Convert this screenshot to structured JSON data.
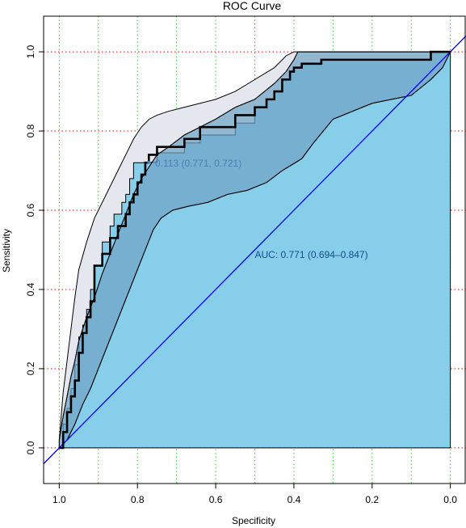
{
  "chart_data": {
    "type": "line",
    "title": "ROC Curve",
    "xlabel": "Specificity",
    "ylabel": "Sensitivity",
    "xlim": [
      1.04,
      -0.04
    ],
    "ylim": [
      -0.09,
      1.09
    ],
    "x_reversed": true,
    "grid": true,
    "x_ticks": [
      "1.0",
      "0.8",
      "0.6",
      "0.4",
      "0.2",
      "0.0"
    ],
    "y_ticks": [
      "0.0",
      "0.2",
      "0.4",
      "0.6",
      "0.8",
      "1.0"
    ],
    "x_tick_values": [
      1.0,
      0.8,
      0.6,
      0.4,
      0.2,
      0.0
    ],
    "y_tick_values": [
      0.0,
      0.2,
      0.4,
      0.6,
      0.8,
      1.0
    ],
    "x_grid": [
      1.0,
      0.9,
      0.8,
      0.7,
      0.6,
      0.5,
      0.4,
      0.3,
      0.2,
      0.1,
      0.0
    ],
    "y_grid": [
      0.0,
      0.2,
      0.4,
      0.6,
      0.8,
      1.0
    ],
    "colors": {
      "grid_x": "#32cd32",
      "grid_y": "#ff0000",
      "auc_fill": "#87ceeb",
      "ci_band": "#6fa3c4",
      "outer_band": "#e5e7ee",
      "curve": "#000000",
      "diagonal": "#0000ff",
      "best_point": "#4682b4",
      "auc_text": "#104e8b"
    },
    "roc_curve": {
      "specificity": [
        1.0,
        0.99,
        0.99,
        0.98,
        0.98,
        0.97,
        0.97,
        0.96,
        0.96,
        0.95,
        0.95,
        0.94,
        0.94,
        0.93,
        0.93,
        0.92,
        0.92,
        0.91,
        0.91,
        0.89,
        0.89,
        0.87,
        0.87,
        0.86,
        0.86,
        0.84,
        0.84,
        0.83,
        0.83,
        0.82,
        0.82,
        0.81,
        0.81,
        0.8,
        0.8,
        0.79,
        0.79,
        0.78,
        0.78,
        0.771,
        0.771,
        0.75,
        0.75,
        0.68,
        0.68,
        0.64,
        0.64,
        0.55,
        0.55,
        0.5,
        0.5,
        0.47,
        0.47,
        0.45,
        0.45,
        0.43,
        0.43,
        0.41,
        0.41,
        0.4,
        0.4,
        0.38,
        0.38,
        0.33,
        0.33,
        0.05,
        0.05,
        0.0,
        0.0
      ],
      "sensitivity": [
        0.0,
        0.0,
        0.06,
        0.06,
        0.1,
        0.1,
        0.15,
        0.15,
        0.21,
        0.21,
        0.28,
        0.28,
        0.31,
        0.31,
        0.35,
        0.35,
        0.4,
        0.4,
        0.46,
        0.46,
        0.52,
        0.52,
        0.56,
        0.56,
        0.59,
        0.59,
        0.62,
        0.62,
        0.64,
        0.64,
        0.68,
        0.68,
        0.7,
        0.7,
        0.72,
        0.72,
        0.74,
        0.74,
        0.76,
        0.76,
        0.81,
        0.81,
        0.84,
        0.84,
        0.86,
        0.86,
        0.88,
        0.88,
        0.92,
        0.92,
        0.94,
        0.94,
        0.96,
        0.96,
        0.97,
        0.97,
        0.98,
        0.98,
        0.99,
        0.99,
        1.0,
        1.0,
        1.0,
        1.0,
        1.0,
        1.0,
        1.0,
        1.0,
        1.0
      ],
      "sensitivity_drawn": [
        0.0,
        0.0,
        0.06,
        0.06,
        0.1,
        0.1,
        0.15,
        0.15,
        0.21,
        0.21,
        0.28,
        0.28,
        0.31,
        0.31,
        0.35,
        0.35,
        0.4,
        0.4,
        0.46,
        0.46,
        0.52,
        0.52,
        0.56,
        0.56,
        0.59,
        0.59,
        0.62,
        0.62,
        0.64,
        0.64,
        0.68,
        0.68,
        0.72,
        0.72,
        0.72,
        0.72,
        0.72,
        0.72,
        0.72,
        0.72,
        0.721,
        0.721,
        0.745,
        0.745,
        0.77,
        0.77,
        0.79,
        0.79,
        0.82,
        0.82,
        0.86,
        0.86,
        0.88,
        0.88,
        0.9,
        0.9,
        0.93,
        0.93,
        0.95,
        0.95,
        0.96,
        0.96,
        0.97,
        0.97,
        0.98,
        0.98,
        1.0,
        1.0,
        1.0
      ]
    },
    "roc_points": {
      "specificity": [
        1.0,
        0.99,
        0.99,
        0.98,
        0.98,
        0.97,
        0.97,
        0.96,
        0.96,
        0.95,
        0.95,
        0.94,
        0.94,
        0.93,
        0.93,
        0.92,
        0.92,
        0.91,
        0.91,
        0.89,
        0.89,
        0.87,
        0.87,
        0.85,
        0.85,
        0.83,
        0.83,
        0.82,
        0.82,
        0.81,
        0.81,
        0.8,
        0.8,
        0.79,
        0.79,
        0.78,
        0.78,
        0.771,
        0.771,
        0.75,
        0.75,
        0.68,
        0.68,
        0.64,
        0.64,
        0.55,
        0.55,
        0.5,
        0.5,
        0.47,
        0.47,
        0.45,
        0.45,
        0.43,
        0.43,
        0.41,
        0.41,
        0.4,
        0.4,
        0.38,
        0.38,
        0.33,
        0.33,
        0.05,
        0.05,
        0.0,
        0.0
      ],
      "sensitivity": [
        0.0,
        0.0,
        0.04,
        0.04,
        0.09,
        0.09,
        0.13,
        0.13,
        0.17,
        0.17,
        0.24,
        0.24,
        0.29,
        0.29,
        0.33,
        0.33,
        0.37,
        0.37,
        0.46,
        0.46,
        0.49,
        0.49,
        0.53,
        0.53,
        0.56,
        0.56,
        0.59,
        0.59,
        0.62,
        0.62,
        0.64,
        0.64,
        0.67,
        0.67,
        0.69,
        0.69,
        0.72,
        0.72,
        0.74,
        0.74,
        0.76,
        0.76,
        0.78,
        0.78,
        0.81,
        0.81,
        0.84,
        0.84,
        0.86,
        0.86,
        0.88,
        0.88,
        0.9,
        0.9,
        0.93,
        0.93,
        0.95,
        0.95,
        0.96,
        0.96,
        0.97,
        0.97,
        0.98,
        0.98,
        1.0,
        1.0,
        1.0
      ]
    },
    "ci_upper": {
      "specificity": [
        1.0,
        0.99,
        0.98,
        0.97,
        0.96,
        0.95,
        0.93,
        0.91,
        0.89,
        0.87,
        0.85,
        0.83,
        0.81,
        0.79,
        0.77,
        0.75,
        0.72,
        0.68,
        0.64,
        0.6,
        0.55,
        0.5,
        0.45,
        0.42,
        0.4,
        0.39,
        0.3,
        0.2,
        0.1,
        0.0
      ],
      "sensitivity": [
        0.02,
        0.08,
        0.13,
        0.18,
        0.22,
        0.27,
        0.33,
        0.38,
        0.44,
        0.49,
        0.54,
        0.59,
        0.64,
        0.68,
        0.71,
        0.74,
        0.76,
        0.79,
        0.81,
        0.83,
        0.86,
        0.88,
        0.92,
        0.95,
        0.98,
        1.0,
        1.0,
        1.0,
        1.0,
        1.0
      ]
    },
    "ci_lower": {
      "specificity": [
        1.0,
        0.98,
        0.96,
        0.94,
        0.92,
        0.9,
        0.88,
        0.86,
        0.84,
        0.82,
        0.8,
        0.78,
        0.76,
        0.74,
        0.71,
        0.67,
        0.62,
        0.57,
        0.52,
        0.47,
        0.43,
        0.38,
        0.35,
        0.3,
        0.2,
        0.1,
        0.05,
        0.02,
        0.0
      ],
      "sensitivity": [
        0.0,
        0.02,
        0.06,
        0.11,
        0.15,
        0.2,
        0.25,
        0.3,
        0.35,
        0.4,
        0.45,
        0.5,
        0.55,
        0.58,
        0.6,
        0.61,
        0.62,
        0.64,
        0.65,
        0.67,
        0.7,
        0.73,
        0.77,
        0.83,
        0.87,
        0.89,
        0.93,
        0.96,
        1.0
      ]
    },
    "outer_upper": {
      "specificity": [
        1.0,
        0.99,
        0.98,
        0.97,
        0.96,
        0.95,
        0.93,
        0.91,
        0.89,
        0.87,
        0.85,
        0.83,
        0.81,
        0.79,
        0.77,
        0.75,
        0.72,
        0.68,
        0.64,
        0.6,
        0.55,
        0.5,
        0.45,
        0.42,
        0.4,
        0.39,
        0.3,
        0.2,
        0.1,
        0.0
      ],
      "sensitivity": [
        0.02,
        0.14,
        0.22,
        0.3,
        0.38,
        0.45,
        0.52,
        0.58,
        0.62,
        0.66,
        0.7,
        0.74,
        0.78,
        0.81,
        0.83,
        0.84,
        0.85,
        0.86,
        0.87,
        0.88,
        0.9,
        0.93,
        0.96,
        0.99,
        1.0,
        1.0,
        1.0,
        1.0,
        1.0,
        1.0
      ]
    },
    "best_point": {
      "specificity": 0.771,
      "sensitivity": 0.721
    },
    "best_point_label": "0.113 (0.771, 0.721)",
    "auc_label": "AUC: 0.771 (0.694–0.847)",
    "auc_label_anchor": {
      "x": 0.5,
      "y": 0.48
    },
    "best_label_anchor": {
      "x": 0.755,
      "y": 0.71
    }
  }
}
